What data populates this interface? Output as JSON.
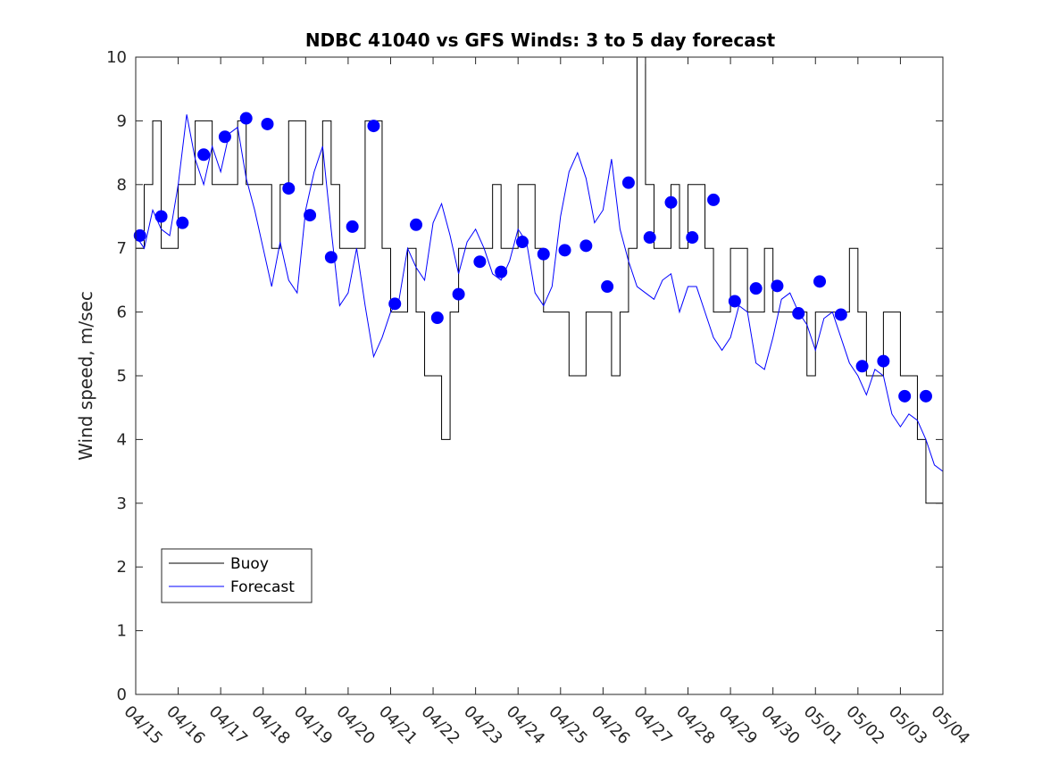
{
  "chart_data": {
    "type": "line",
    "title": "NDBC 41040 vs GFS Winds: 3 to 5 day forecast",
    "xlabel": "",
    "ylabel": "Wind speed, m/sec",
    "xlim": [
      "04/15",
      "05/04"
    ],
    "ylim": [
      0,
      10
    ],
    "x_ticks": [
      "04/15",
      "04/16",
      "04/17",
      "04/18",
      "04/19",
      "04/20",
      "04/21",
      "04/22",
      "04/23",
      "04/24",
      "04/25",
      "04/26",
      "04/27",
      "04/28",
      "04/29",
      "04/30",
      "05/01",
      "05/02",
      "05/03",
      "05/04"
    ],
    "y_ticks": [
      0,
      1,
      2,
      3,
      4,
      5,
      6,
      7,
      8,
      9,
      10
    ],
    "grid": false,
    "legend": {
      "placement": "bottom-left",
      "entries": [
        "Buoy",
        "Forecast"
      ]
    },
    "colors": {
      "buoy": "#000000",
      "forecast": "#0000ff",
      "markers": "#0000ff"
    },
    "series": [
      {
        "name": "Buoy",
        "style": "line",
        "x_days": [
          0,
          0.2,
          0.4,
          0.6,
          0.8,
          1.0,
          1.2,
          1.4,
          1.6,
          1.8,
          2.0,
          2.2,
          2.4,
          2.6,
          2.8,
          3.0,
          3.2,
          3.4,
          3.6,
          3.8,
          4.0,
          4.2,
          4.4,
          4.6,
          4.8,
          5.0,
          5.2,
          5.4,
          5.6,
          5.8,
          6.0,
          6.2,
          6.4,
          6.6,
          6.8,
          7.0,
          7.2,
          7.4,
          7.6,
          7.8,
          8.0,
          8.2,
          8.4,
          8.6,
          8.8,
          9.0,
          9.2,
          9.4,
          9.6,
          9.8,
          10.0,
          10.2,
          10.4,
          10.6,
          10.8,
          11.0,
          11.2,
          11.4,
          11.6,
          11.8,
          12.0,
          12.2,
          12.4,
          12.6,
          12.8,
          13.0,
          13.2,
          13.4,
          13.6,
          13.8,
          14.0,
          14.2,
          14.4,
          14.6,
          14.8,
          15.0,
          15.2,
          15.4,
          15.6,
          15.8,
          16.0,
          16.2,
          16.4,
          16.6,
          16.8,
          17.0,
          17.2,
          17.4,
          17.6,
          17.8,
          18.0,
          18.2,
          18.4,
          18.6,
          18.8,
          19.0
        ],
        "values": [
          7,
          8,
          9,
          7,
          7,
          8,
          8,
          9,
          9,
          8,
          8,
          8,
          9,
          8,
          8,
          8,
          7,
          8,
          9,
          9,
          8,
          8,
          9,
          8,
          7,
          7,
          7,
          9,
          9,
          7,
          6,
          6,
          7,
          6,
          5,
          5,
          4,
          6,
          7,
          7,
          7,
          7,
          8,
          7,
          7,
          8,
          8,
          7,
          6,
          6,
          6,
          5,
          5,
          6,
          6,
          6,
          5,
          6,
          7,
          10,
          8,
          7,
          7,
          8,
          7,
          8,
          8,
          7,
          6,
          6,
          7,
          7,
          6,
          6,
          7,
          6,
          6,
          6,
          6,
          5,
          6,
          6,
          6,
          6,
          7,
          6,
          5,
          5,
          6,
          6,
          5,
          5,
          4,
          3,
          3,
          4
        ]
      },
      {
        "name": "Forecast",
        "style": "line",
        "x_days": [
          0,
          0.2,
          0.4,
          0.6,
          0.8,
          1.0,
          1.2,
          1.4,
          1.6,
          1.8,
          2.0,
          2.2,
          2.4,
          2.6,
          2.8,
          3.0,
          3.2,
          3.4,
          3.6,
          3.8,
          4.0,
          4.2,
          4.4,
          4.6,
          4.8,
          5.0,
          5.2,
          5.4,
          5.6,
          5.8,
          6.0,
          6.2,
          6.4,
          6.6,
          6.8,
          7.0,
          7.2,
          7.4,
          7.6,
          7.8,
          8.0,
          8.2,
          8.4,
          8.6,
          8.8,
          9.0,
          9.2,
          9.4,
          9.6,
          9.8,
          10.0,
          10.2,
          10.4,
          10.6,
          10.8,
          11.0,
          11.2,
          11.4,
          11.6,
          11.8,
          12.0,
          12.2,
          12.4,
          12.6,
          12.8,
          13.0,
          13.2,
          13.4,
          13.6,
          13.8,
          14.0,
          14.2,
          14.4,
          14.6,
          14.8,
          15.0,
          15.2,
          15.4,
          15.6,
          15.8,
          16.0,
          16.2,
          16.4,
          16.6,
          16.8,
          17.0,
          17.2,
          17.4,
          17.6,
          17.8,
          18.0,
          18.2,
          18.4,
          18.6,
          18.8,
          19.0
        ],
        "values": [
          7.2,
          7.0,
          7.6,
          7.3,
          7.2,
          8.0,
          9.1,
          8.4,
          8.0,
          8.6,
          8.2,
          8.8,
          8.9,
          8.1,
          7.6,
          7.0,
          6.4,
          7.1,
          6.5,
          6.3,
          7.6,
          8.2,
          8.6,
          7.3,
          6.1,
          6.3,
          7.0,
          6.1,
          5.3,
          5.6,
          6.0,
          6.2,
          7.0,
          6.7,
          6.5,
          7.4,
          7.7,
          7.2,
          6.6,
          7.1,
          7.3,
          7.0,
          6.6,
          6.5,
          6.8,
          7.3,
          7.1,
          6.3,
          6.1,
          6.4,
          7.5,
          8.2,
          8.5,
          8.1,
          7.4,
          7.6,
          8.4,
          7.3,
          6.8,
          6.4,
          6.3,
          6.2,
          6.5,
          6.6,
          6.0,
          6.4,
          6.4,
          6.0,
          5.6,
          5.4,
          5.6,
          6.1,
          6.0,
          5.2,
          5.1,
          5.6,
          6.2,
          6.3,
          6.0,
          5.8,
          5.4,
          5.9,
          6.0,
          5.6,
          5.2,
          5.0,
          4.7,
          5.1,
          5.0,
          4.4,
          4.2,
          4.4,
          4.3,
          4.0,
          3.6,
          3.5
        ]
      },
      {
        "name": "",
        "style": "markers",
        "x_days": [
          0.1,
          0.6,
          1.1,
          1.6,
          2.1,
          2.6,
          3.1,
          3.6,
          4.1,
          4.6,
          5.1,
          5.6,
          6.1,
          6.6,
          7.1,
          7.6,
          8.1,
          8.6,
          9.1,
          9.6,
          10.1,
          10.6,
          11.1,
          11.6,
          12.1,
          12.6,
          13.1,
          13.6,
          14.1,
          14.6,
          15.1,
          15.6,
          16.1,
          16.6,
          17.1,
          17.6,
          18.1,
          18.6
        ],
        "values": [
          7.2,
          7.5,
          7.4,
          8.47,
          8.75,
          9.04,
          8.95,
          7.94,
          7.52,
          6.86,
          7.34,
          8.92,
          6.13,
          7.37,
          5.91,
          6.28,
          6.79,
          6.63,
          7.1,
          6.91,
          6.97,
          7.04,
          6.4,
          8.03,
          7.17,
          7.72,
          7.17,
          7.76,
          6.17,
          6.37,
          6.41,
          5.98,
          6.48,
          5.96,
          5.15,
          5.23,
          4.68,
          4.68
        ]
      }
    ]
  }
}
